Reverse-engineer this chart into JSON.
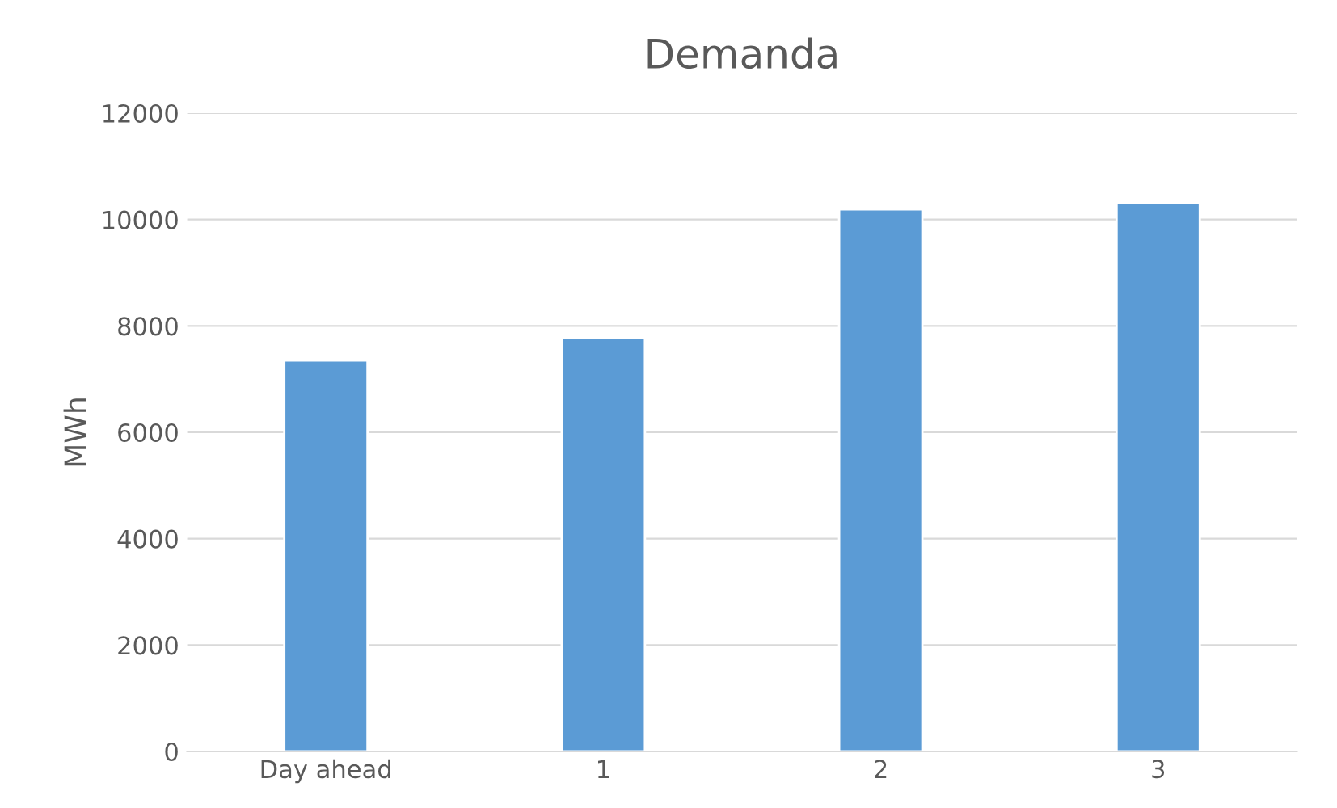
{
  "chart_data": {
    "type": "bar",
    "title": "Demanda",
    "ylabel": "MWh",
    "categories": [
      "Day ahead",
      "1",
      "2",
      "3"
    ],
    "values": [
      7350,
      7780,
      10190,
      10310
    ],
    "color": "#5b9bd5",
    "ylim": [
      0,
      12000
    ],
    "yticks": [
      0,
      2000,
      4000,
      6000,
      8000,
      10000,
      12000
    ],
    "grid": "y",
    "legend": false
  }
}
